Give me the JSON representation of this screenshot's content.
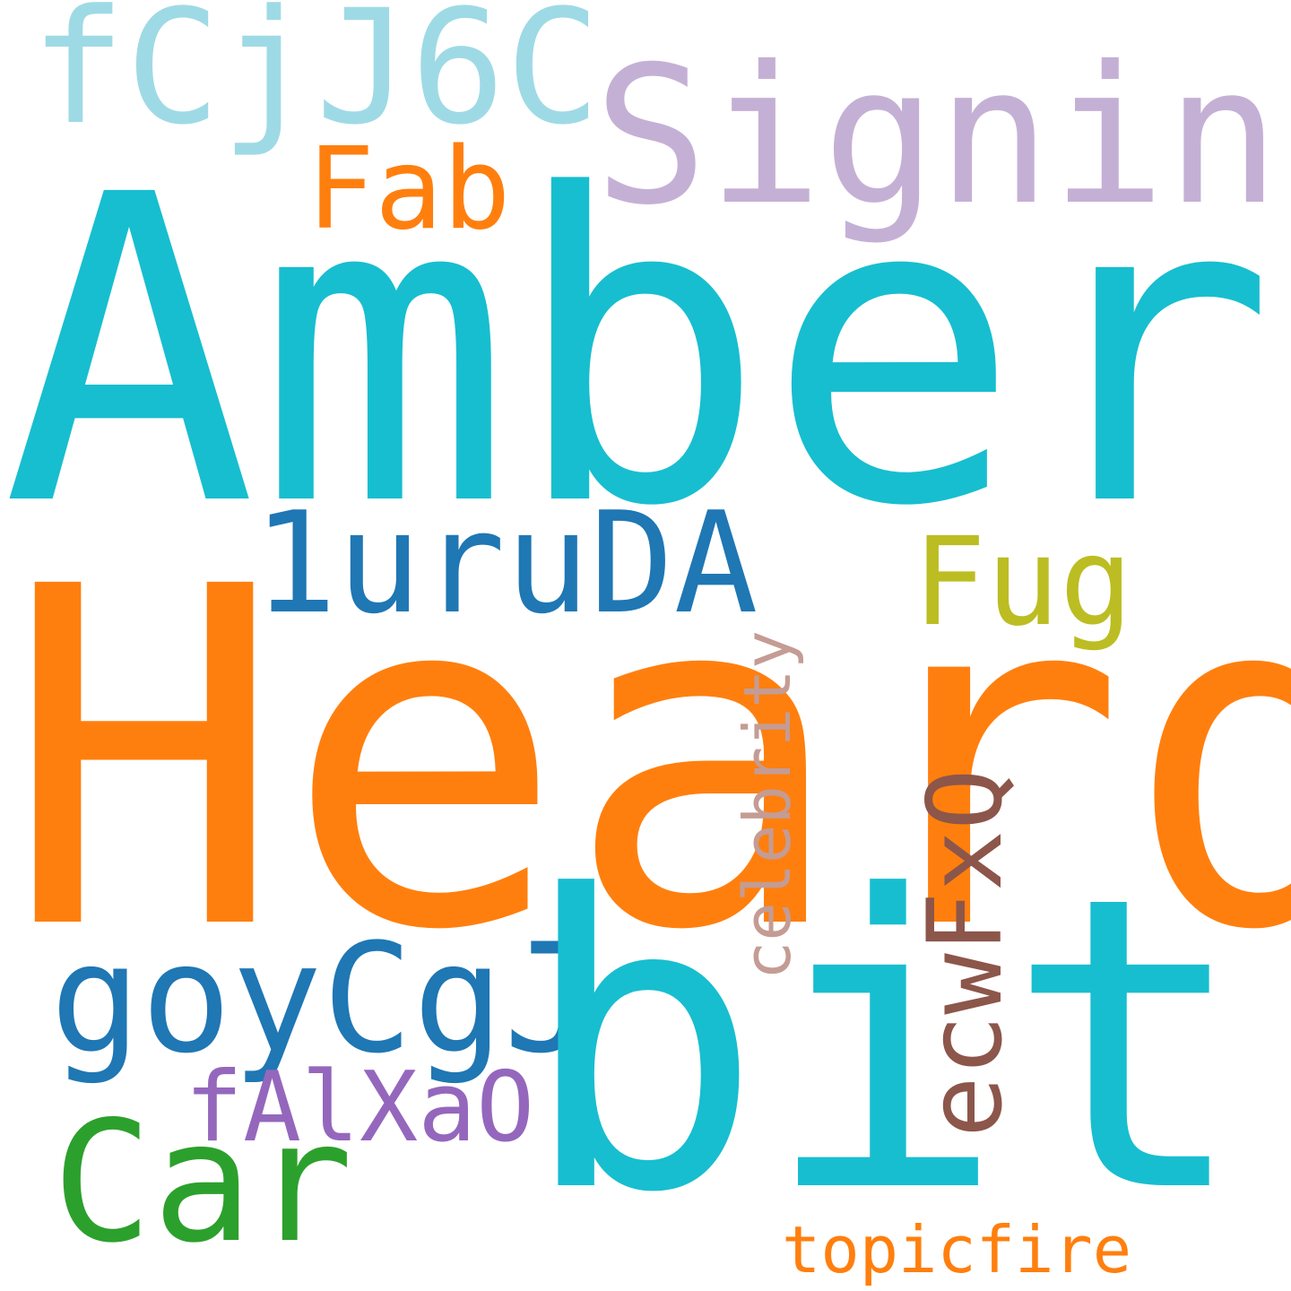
{
  "words": {
    "amber": {
      "text": "Amber",
      "color": "#17becf"
    },
    "heard": {
      "text": "Heard",
      "color": "#ff7f0e"
    },
    "bit": {
      "text": "bit",
      "color": "#17becf"
    },
    "signing": {
      "text": "Signing",
      "color": "#c5b0d5"
    },
    "fcjj6c": {
      "text": "fCjJ6C",
      "color": "#9edae5"
    },
    "fab": {
      "text": "Fab",
      "color": "#ff7f0e"
    },
    "uruda": {
      "text": "1uruDA",
      "color": "#1f77b4"
    },
    "fug": {
      "text": "Fug",
      "color": "#bcbd22"
    },
    "goycgj": {
      "text": "goyCgJ",
      "color": "#1f77b4"
    },
    "car": {
      "text": "Car",
      "color": "#2ca02c"
    },
    "falxao": {
      "text": "fAlXaO",
      "color": "#9467bd"
    },
    "topicfire": {
      "text": "topicfire",
      "color": "#ff7f0e"
    },
    "celebrity": {
      "text": "celebrity",
      "color": "#c49c94"
    },
    "ecwfxq": {
      "text": "ecwFxQ",
      "color": "#8c564b"
    }
  }
}
